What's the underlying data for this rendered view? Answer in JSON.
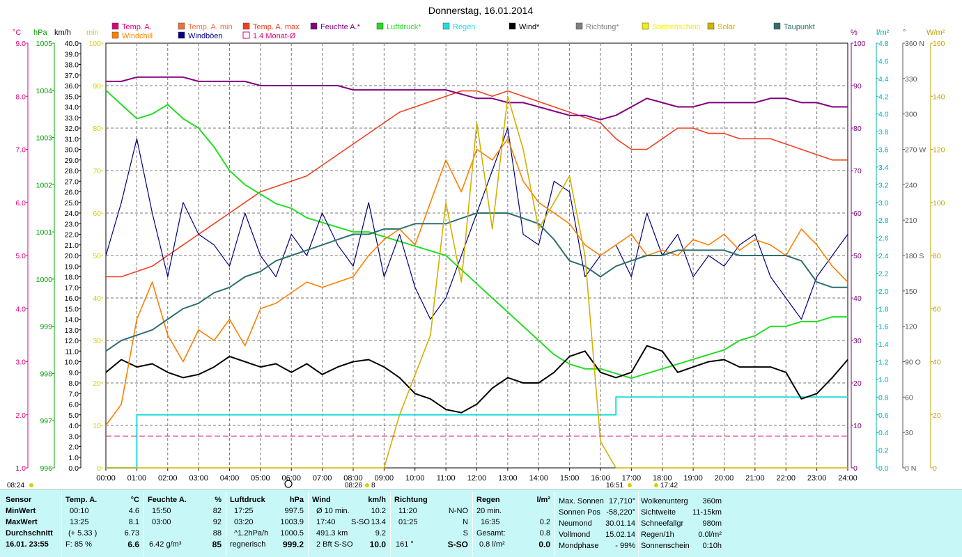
{
  "title": "Donnerstag, 16.01.2014",
  "unit_labels": {
    "temp": "°C",
    "hpa": "hPa",
    "kmh": "km/h",
    "min": "min",
    "pct": "%",
    "lm2": "l/m²",
    "deg": "°",
    "wm2": "W/m²"
  },
  "legend": [
    {
      "label": "Temp. A.",
      "color": "#e0007a"
    },
    {
      "label": "Temp. A. min",
      "color": "#f07040"
    },
    {
      "label": "Temp. A. max",
      "color": "#f04020"
    },
    {
      "label": "Feuchte A.*",
      "color": "#800080"
    },
    {
      "label": "Luftdruck*",
      "color": "#22dd22"
    },
    {
      "label": "Regen",
      "color": "#22dddd"
    },
    {
      "label": "Wind*",
      "color": "#000000"
    },
    {
      "label": "Richtung*",
      "color": "#808080"
    },
    {
      "label": "Sonnenschein",
      "color": "#f0f000"
    },
    {
      "label": "Solar",
      "color": "#d4b000"
    },
    {
      "label": "Taupunkt",
      "color": "#2f6f6f"
    },
    {
      "label": "Windchill",
      "color": "#ff7f00"
    },
    {
      "label": "Windböen",
      "color": "#000080"
    },
    {
      "label": "1.4 Monat-Ø",
      "color": "#e0007a"
    }
  ],
  "axes": {
    "temp": {
      "ticks": [
        "9.0",
        "8.0",
        "7.0",
        "6.0",
        "5.0",
        "4.0",
        "3.0",
        "2.0",
        "1.0"
      ],
      "color": "#e0007a"
    },
    "hpa": {
      "ticks": [
        "1005",
        "1004",
        "1003",
        "1002",
        "1001",
        "1000",
        "999",
        "998",
        "997",
        "996"
      ],
      "color": "#00a000"
    },
    "kmh": {
      "ticks": [
        "40.0",
        "39.0",
        "38.0",
        "37.0",
        "36.0",
        "35.0",
        "34.0",
        "33.0",
        "32.0",
        "31.0",
        "30.0",
        "29.0",
        "28.0",
        "27.0",
        "26.0",
        "25.0",
        "24.0",
        "23.0",
        "22.0",
        "21.0",
        "20.0",
        "19.0",
        "18.0",
        "17.0",
        "16.0",
        "15.0",
        "14.0",
        "13.0",
        "12.0",
        "11.0",
        "10.0",
        "9.0",
        "8.0",
        "7.0",
        "6.0",
        "5.0",
        "4.0",
        "3.0",
        "2.0",
        "1.0",
        "0.0"
      ],
      "color": "#000000"
    },
    "min": {
      "ticks": [
        "100",
        "90",
        "80",
        "70",
        "60",
        "50",
        "40",
        "30",
        "20",
        "10",
        "0"
      ],
      "color": "#d4d000"
    },
    "pct": {
      "ticks": [
        "100",
        "90",
        "80",
        "70",
        "60",
        "50",
        "40",
        "30",
        "20",
        "10",
        "0"
      ],
      "color": "#800080"
    },
    "lm2": {
      "ticks": [
        "4.8",
        "4.6",
        "4.4",
        "4.2",
        "4.0",
        "3.8",
        "3.6",
        "3.4",
        "3.2",
        "3.0",
        "2.8",
        "2.6",
        "2.4",
        "2.2",
        "2.0",
        "1.8",
        "1.6",
        "1.4",
        "1.2",
        "1.0",
        "0.8",
        "0.6",
        "0.4",
        "0.2",
        "0.0"
      ],
      "color": "#00b0b0"
    },
    "deg": {
      "ticks": [
        "360 N",
        "330",
        "300",
        "270 W",
        "240",
        "210",
        "180 S",
        "150",
        "120",
        "90 O",
        "60",
        "30",
        "0 N"
      ],
      "color": "#555555"
    },
    "wm2": {
      "ticks": [
        "160",
        "140",
        "120",
        "100",
        "80",
        "60",
        "40",
        "20",
        "0"
      ],
      "color": "#c0a000"
    },
    "x": {
      "ticks": [
        "00:00",
        "01:00",
        "02:00",
        "03:00",
        "04:00",
        "05:00",
        "06:00",
        "07:00",
        "08:00",
        "09:00",
        "10:00",
        "11:00",
        "12:00",
        "13:00",
        "14:00",
        "15:00",
        "16:00",
        "17:00",
        "18:00",
        "19:00",
        "20:00",
        "21:00",
        "22:00",
        "23:00",
        "24:00"
      ]
    }
  },
  "time_marks": {
    "left": "08:24",
    "sunrise": "08:26",
    "sunrise_b": "8",
    "sunset": "16:51",
    "moon": "17:42"
  },
  "chart_data": {
    "type": "line",
    "title": "Donnerstag, 16.01.2014",
    "x": [
      0,
      0.5,
      1,
      1.5,
      2,
      2.5,
      3,
      3.5,
      4,
      4.5,
      5,
      5.5,
      6,
      6.5,
      7,
      7.5,
      8,
      8.5,
      9,
      9.5,
      10,
      10.5,
      11,
      11.5,
      12,
      12.5,
      13,
      13.5,
      14,
      14.5,
      15,
      15.5,
      16,
      16.5,
      17,
      17.5,
      18,
      18.5,
      19,
      19.5,
      20,
      20.5,
      21,
      21.5,
      22,
      22.5,
      23,
      23.5,
      24
    ],
    "series": [
      {
        "name": "Temp. A. max",
        "axis": "temp",
        "unit": "°C",
        "values": [
          4.6,
          4.6,
          4.7,
          4.8,
          5.0,
          5.2,
          5.4,
          5.6,
          5.8,
          6.0,
          6.2,
          6.3,
          6.4,
          6.5,
          6.7,
          6.9,
          7.1,
          7.3,
          7.5,
          7.7,
          7.8,
          7.9,
          8.0,
          8.1,
          8.1,
          8.0,
          8.1,
          8.0,
          7.9,
          7.8,
          7.7,
          7.6,
          7.5,
          7.2,
          7.0,
          7.0,
          7.2,
          7.4,
          7.4,
          7.3,
          7.3,
          7.2,
          7.2,
          7.2,
          7.1,
          7.0,
          6.9,
          6.8,
          6.8
        ]
      },
      {
        "name": "Feuchte A.*",
        "axis": "pct",
        "unit": "%",
        "values": [
          91,
          91,
          92,
          92,
          92,
          92,
          91,
          91,
          91,
          91,
          90,
          90,
          90,
          90,
          90,
          90,
          89,
          89,
          89,
          89,
          89,
          89,
          89,
          88,
          87,
          87,
          86,
          86,
          85,
          84,
          83,
          83,
          82,
          83,
          85,
          87,
          86,
          85,
          85,
          86,
          86,
          86,
          86,
          87,
          87,
          86,
          86,
          85,
          85
        ]
      },
      {
        "name": "Luftdruck*",
        "axis": "hpa",
        "unit": "hPa",
        "values": [
          1004.0,
          1003.7,
          1003.4,
          1003.5,
          1003.7,
          1003.4,
          1003.2,
          1002.8,
          1002.3,
          1002.0,
          1001.8,
          1001.6,
          1001.5,
          1001.3,
          1001.2,
          1001.1,
          1001.0,
          1001.0,
          1000.9,
          1000.8,
          1000.7,
          1000.6,
          1000.5,
          1000.2,
          999.9,
          999.6,
          999.3,
          999.0,
          998.7,
          998.4,
          998.2,
          998.1,
          998.1,
          998.0,
          997.9,
          998.0,
          998.1,
          998.2,
          998.3,
          998.4,
          998.5,
          998.7,
          998.8,
          999.0,
          999.0,
          999.1,
          999.1,
          999.2,
          999.2
        ]
      },
      {
        "name": "Regen",
        "axis": "lm2",
        "unit": "l/m²",
        "values": [
          0.0,
          0.0,
          0.6,
          0.6,
          0.6,
          0.6,
          0.6,
          0.6,
          0.6,
          0.6,
          0.6,
          0.6,
          0.6,
          0.6,
          0.6,
          0.6,
          0.6,
          0.6,
          0.6,
          0.6,
          0.6,
          0.6,
          0.6,
          0.6,
          0.6,
          0.6,
          0.6,
          0.6,
          0.6,
          0.6,
          0.6,
          0.6,
          0.6,
          0.8,
          0.8,
          0.8,
          0.8,
          0.8,
          0.8,
          0.8,
          0.8,
          0.8,
          0.8,
          0.8,
          0.8,
          0.8,
          0.8,
          0.8,
          0.8
        ]
      },
      {
        "name": "Wind*",
        "axis": "kmh",
        "unit": "km/h",
        "values": [
          9.0,
          10.2,
          9.5,
          9.8,
          9.0,
          8.5,
          8.8,
          9.5,
          10.5,
          10.0,
          9.5,
          9.8,
          9.0,
          9.8,
          8.8,
          9.5,
          10.0,
          10.2,
          9.5,
          8.5,
          7.0,
          6.5,
          5.5,
          5.2,
          6.0,
          7.5,
          8.5,
          8.0,
          8.0,
          9.0,
          10.5,
          11.0,
          9.0,
          8.5,
          9.0,
          11.5,
          11.0,
          9.0,
          9.5,
          10.0,
          10.2,
          9.5,
          9.5,
          9.5,
          9.0,
          6.5,
          7.0,
          8.5,
          10.2
        ]
      },
      {
        "name": "Windböen",
        "axis": "kmh",
        "unit": "km/h",
        "values": [
          20.0,
          25.0,
          31.0,
          24.0,
          18.0,
          25.0,
          22.0,
          21.0,
          19.0,
          24.0,
          20.0,
          18.0,
          22.0,
          20.0,
          24.0,
          21.0,
          19.0,
          25.0,
          18.0,
          22.0,
          17.0,
          14.0,
          16.0,
          20.0,
          24.0,
          28.0,
          32.0,
          22.0,
          21.0,
          27.0,
          26.0,
          18.0,
          20.0,
          21.0,
          18.0,
          24.0,
          20.0,
          22.0,
          18.0,
          20.0,
          19.0,
          21.0,
          22.0,
          18.0,
          16.0,
          14.0,
          18.0,
          20.0,
          22.0
        ]
      },
      {
        "name": "Temp. A. min",
        "axis": "temp",
        "unit": "°C",
        "values": [
          1.8,
          2.2,
          3.8,
          4.5,
          3.5,
          3.0,
          3.6,
          3.4,
          3.8,
          3.3,
          4.0,
          4.1,
          4.3,
          4.5,
          4.4,
          4.5,
          4.6,
          5.0,
          5.3,
          5.5,
          5.2,
          6.0,
          6.8,
          6.2,
          7.0,
          6.8,
          7.2,
          6.4,
          6.0,
          5.8,
          5.6,
          5.2,
          5.0,
          5.2,
          5.4,
          5.0,
          5.1,
          5.0,
          5.3,
          5.2,
          5.4,
          5.1,
          5.3,
          5.2,
          5.0,
          5.5,
          5.2,
          4.8,
          4.5
        ]
      },
      {
        "name": "Taupunkt",
        "axis": "temp",
        "unit": "°C",
        "values": [
          3.2,
          3.4,
          3.5,
          3.6,
          3.8,
          4.0,
          4.1,
          4.3,
          4.4,
          4.6,
          4.7,
          4.9,
          5.0,
          5.1,
          5.2,
          5.3,
          5.4,
          5.4,
          5.5,
          5.5,
          5.6,
          5.6,
          5.6,
          5.7,
          5.8,
          5.8,
          5.8,
          5.7,
          5.6,
          5.3,
          4.9,
          4.8,
          4.6,
          4.8,
          4.9,
          5.0,
          5.0,
          5.1,
          5.1,
          5.1,
          5.1,
          5.0,
          5.0,
          5.0,
          5.0,
          4.9,
          4.5,
          4.4,
          4.4
        ]
      },
      {
        "name": "Solar",
        "axis": "wm2",
        "unit": "W/m²",
        "values": [
          0,
          0,
          0,
          0,
          0,
          0,
          0,
          0,
          0,
          0,
          0,
          0,
          0,
          0,
          0,
          0,
          0,
          0,
          0,
          20,
          35,
          50,
          100,
          70,
          130,
          90,
          140,
          120,
          90,
          100,
          110,
          80,
          10,
          0,
          0,
          0,
          0,
          0,
          0,
          0,
          0,
          0,
          0,
          0,
          0,
          0,
          0,
          0,
          0
        ]
      },
      {
        "name": "1.4 Monat-Ø",
        "axis": "temp",
        "unit": "°C",
        "values": [
          1.6,
          1.6,
          1.6,
          1.6,
          1.6,
          1.6,
          1.6,
          1.6,
          1.6,
          1.6,
          1.6,
          1.6,
          1.6,
          1.6,
          1.6,
          1.6,
          1.6,
          1.6,
          1.6,
          1.6,
          1.6,
          1.6,
          1.6,
          1.6,
          1.6,
          1.6,
          1.6,
          1.6,
          1.6,
          1.6,
          1.6,
          1.6,
          1.6,
          1.6,
          1.6,
          1.6,
          1.6,
          1.6,
          1.6,
          1.6,
          1.6,
          1.6,
          1.6,
          1.6,
          1.6,
          1.6,
          1.6,
          1.6,
          1.6
        ]
      }
    ]
  },
  "info": {
    "sensor": {
      "header": "Sensor",
      "rows": [
        "MinWert",
        "MaxWert",
        "Durchschnitt",
        "16.01. 23:55"
      ]
    },
    "temp": {
      "header": "Temp. A.",
      "unit": "°C",
      "r1": [
        "00:10",
        "4.6"
      ],
      "r2": [
        "13:25",
        "8.1"
      ],
      "r3": [
        "(+ 5.33 )",
        "6.73"
      ],
      "r4": [
        "F: 85 %",
        "6.6"
      ]
    },
    "feuchte": {
      "header": "Feuchte A.",
      "unit": "%",
      "r1": [
        "15:50",
        "82"
      ],
      "r2": [
        "03:00",
        "92"
      ],
      "r3": [
        "",
        "88"
      ],
      "r4": [
        "6.42 g/m³",
        "85"
      ]
    },
    "luftdruck": {
      "header": "Luftdruck",
      "unit": "hPa",
      "r1": [
        "17:25",
        "997.5"
      ],
      "r2": [
        "03:20",
        "1003.9"
      ],
      "r3": [
        "^1.2hPa/h",
        "1000.5"
      ],
      "r4": [
        "regnerisch",
        "999.2"
      ]
    },
    "wind": {
      "header": "Wind",
      "unit": "km/h",
      "r1": [
        "Ø 10 min.",
        "",
        "10.2"
      ],
      "r2": [
        "17:40",
        "S-SO",
        "13.4"
      ],
      "r3": [
        "491.3 km",
        "",
        "9.2"
      ],
      "r4": [
        "2 Bft S-SO",
        "",
        "10.0"
      ]
    },
    "richtung": {
      "header": "Richtung",
      "r1": [
        "11:20",
        "N-NO"
      ],
      "r2": [
        "01:25",
        "N"
      ],
      "r3": [
        "",
        "S"
      ],
      "r4": [
        "161 °",
        "S-SO"
      ]
    },
    "regen": {
      "header": "Regen",
      "unit": "l/m²",
      "r1": [
        "20 min.",
        ""
      ],
      "r2": [
        "16:35",
        "0.2"
      ],
      "r3": [
        "Gesamt:",
        "0.8"
      ],
      "r4": [
        "0.8 l/m²",
        "0.0"
      ]
    },
    "sonne": {
      "r1": [
        "Max. Sonnen",
        "17,710°"
      ],
      "r2": [
        "Sonnen Pos",
        "-58,220°"
      ],
      "r3": [
        "Neumond",
        "30.01.14"
      ],
      "r4": [
        "Vollmond",
        "15.02.14"
      ],
      "r5": [
        "Mondphase",
        "- 99%"
      ]
    },
    "wetter": {
      "r1": [
        "Wolkenunterg",
        "360m"
      ],
      "r2": [
        "Sichtweite",
        "11-15km"
      ],
      "r3": [
        "Schneefallgr",
        "980m"
      ],
      "r4": [
        "Regen/1h",
        "0.0l/m²"
      ],
      "r5": [
        "Sonnenschein",
        "0:10h"
      ]
    }
  }
}
